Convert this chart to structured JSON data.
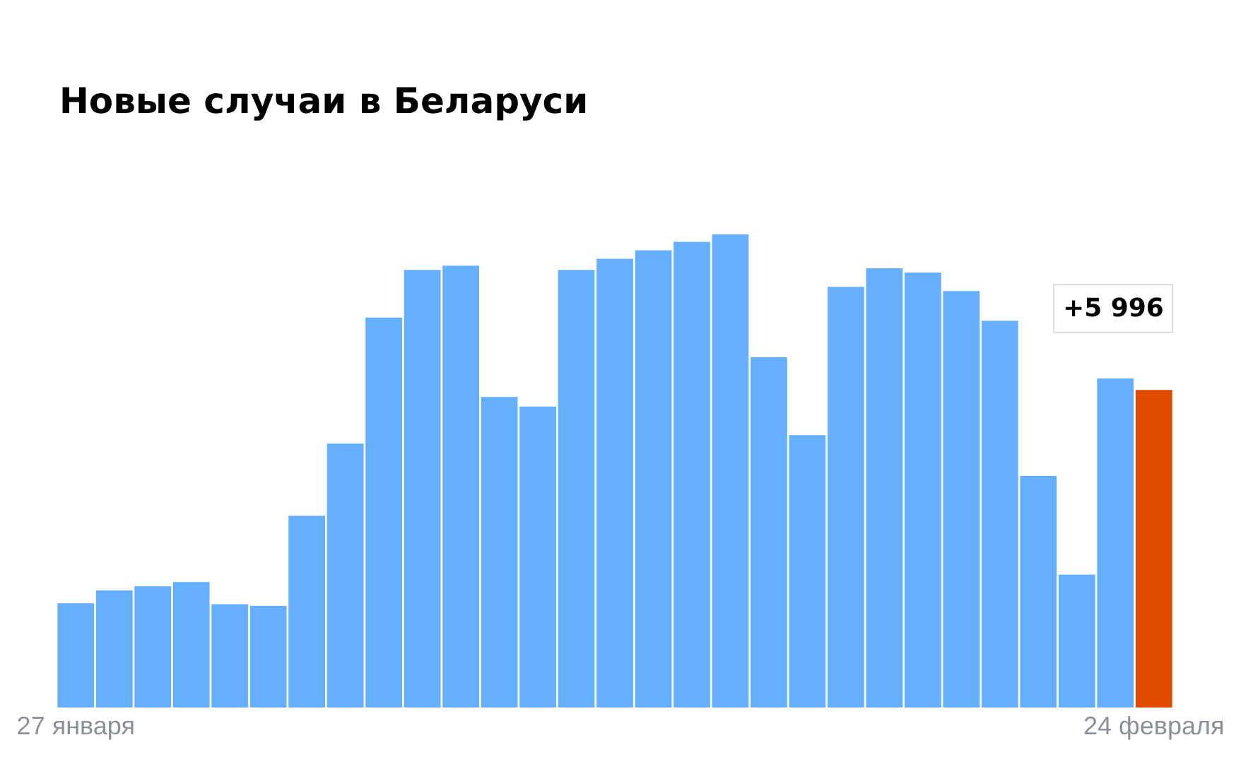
{
  "chart_data": {
    "type": "bar",
    "title": "Новые случаи в Беларуси",
    "categories": [
      "27 января",
      null,
      null,
      null,
      null,
      null,
      null,
      null,
      null,
      null,
      null,
      null,
      null,
      null,
      null,
      null,
      null,
      null,
      null,
      null,
      null,
      null,
      null,
      null,
      null,
      null,
      null,
      null,
      "24 февраля"
    ],
    "values": [
      1970,
      2210,
      2290,
      2370,
      1950,
      1920,
      3620,
      4980,
      7360,
      8260,
      8340,
      5860,
      5680,
      8260,
      8470,
      8630,
      8790,
      8930,
      6610,
      5140,
      7940,
      8290,
      8210,
      7860,
      7300,
      4370,
      2510,
      6210,
      5996
    ],
    "colors": [
      "#66afff",
      "#66afff",
      "#66afff",
      "#66afff",
      "#66afff",
      "#66afff",
      "#66afff",
      "#66afff",
      "#66afff",
      "#66afff",
      "#66afff",
      "#66afff",
      "#66afff",
      "#66afff",
      "#66afff",
      "#66afff",
      "#66afff",
      "#66afff",
      "#66afff",
      "#66afff",
      "#66afff",
      "#66afff",
      "#66afff",
      "#66afff",
      "#66afff",
      "#66afff",
      "#66afff",
      "#66afff",
      "#e04a00"
    ],
    "value_labels": [
      null,
      null,
      null,
      null,
      null,
      null,
      null,
      null,
      null,
      null,
      null,
      null,
      null,
      null,
      null,
      null,
      null,
      null,
      null,
      null,
      null,
      null,
      null,
      null,
      null,
      null,
      null,
      null,
      "+5 996"
    ],
    "legend": false
  }
}
